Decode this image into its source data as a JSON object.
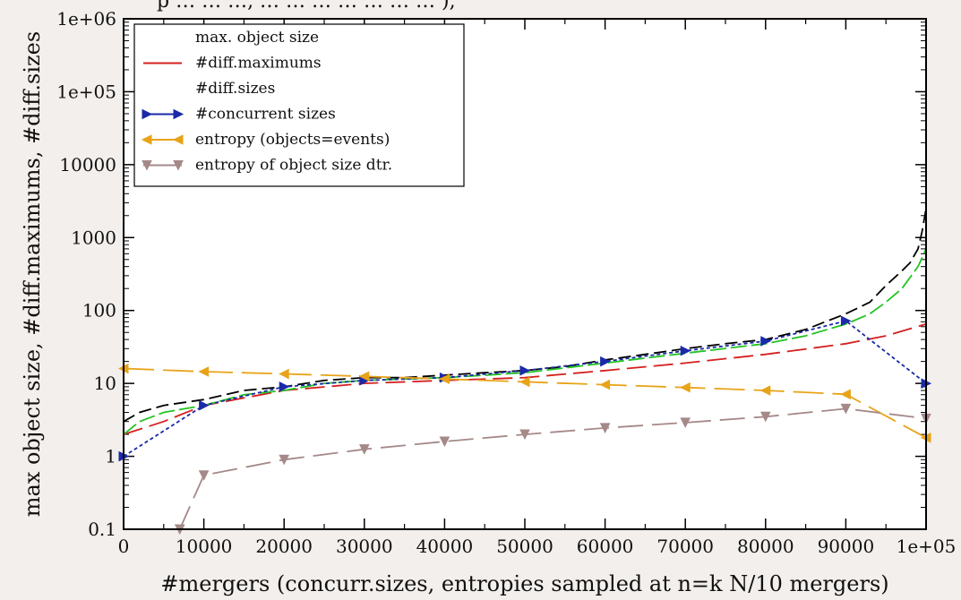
{
  "page": {
    "background": "#f3efec",
    "top_text": "p … … …, … … … … … … … ),"
  },
  "chart_data": {
    "type": "line",
    "xlabel": "#mergers (concurr.sizes, entropies sampled at n=k N/10 mergers)",
    "ylabel": "max object size, #diff.maximums, #diff.sizes",
    "xlim": [
      0,
      100000
    ],
    "ylim": [
      0.1,
      1000000
    ],
    "yscale": "log",
    "x_ticks": [
      {
        "value": 0,
        "label": "0"
      },
      {
        "value": 10000,
        "label": "10000"
      },
      {
        "value": 20000,
        "label": "20000"
      },
      {
        "value": 30000,
        "label": "30000"
      },
      {
        "value": 40000,
        "label": "40000"
      },
      {
        "value": 50000,
        "label": "50000"
      },
      {
        "value": 60000,
        "label": "60000"
      },
      {
        "value": 70000,
        "label": "70000"
      },
      {
        "value": 80000,
        "label": "80000"
      },
      {
        "value": 90000,
        "label": "90000"
      },
      {
        "value": 100000,
        "label": "1e+05"
      }
    ],
    "y_ticks": [
      {
        "value": 0.1,
        "label": "0.1"
      },
      {
        "value": 1,
        "label": "1"
      },
      {
        "value": 10,
        "label": "10"
      },
      {
        "value": 100,
        "label": "100"
      },
      {
        "value": 1000,
        "label": "1000"
      },
      {
        "value": 10000,
        "label": "10000"
      },
      {
        "value": 100000,
        "label": "1e+05"
      },
      {
        "value": 1000000,
        "label": "1e+06"
      }
    ],
    "legend_position": "top-left",
    "series": [
      {
        "name": "max. object size",
        "color": "#000000",
        "style": "dashed",
        "marker": "none",
        "x": [
          0,
          2000,
          5000,
          10000,
          15000,
          20000,
          25000,
          30000,
          35000,
          40000,
          45000,
          50000,
          55000,
          60000,
          65000,
          70000,
          75000,
          80000,
          85000,
          90000,
          93000,
          95000,
          97000,
          98000,
          99000,
          99500,
          100000
        ],
        "y": [
          3,
          4,
          5,
          6,
          8,
          9,
          11,
          12,
          12,
          13,
          14,
          15,
          17,
          21,
          25,
          30,
          35,
          40,
          55,
          90,
          130,
          220,
          350,
          450,
          700,
          1200,
          2500
        ]
      },
      {
        "name": "#diff.maximums",
        "color": "#d42020",
        "style": "dashed",
        "marker": "none",
        "x": [
          0,
          5000,
          10000,
          20000,
          30000,
          40000,
          50000,
          60000,
          70000,
          80000,
          90000,
          95000,
          100000
        ],
        "y": [
          2,
          3,
          5,
          8,
          10,
          11,
          12,
          15,
          19,
          25,
          35,
          45,
          65
        ]
      },
      {
        "name": "#diff.sizes",
        "color": "#22c422",
        "style": "dashed",
        "marker": "none",
        "x": [
          0,
          2000,
          5000,
          10000,
          15000,
          20000,
          25000,
          30000,
          40000,
          50000,
          60000,
          70000,
          80000,
          85000,
          90000,
          93000,
          95000,
          97000,
          99000,
          100000
        ],
        "y": [
          2,
          3,
          4,
          5,
          7,
          8,
          10,
          11,
          12,
          14,
          19,
          26,
          35,
          45,
          65,
          90,
          130,
          200,
          400,
          700
        ]
      },
      {
        "name": "#concurrent sizes",
        "color": "#1a2aa8",
        "style": "dashed",
        "marker": "triangle-right",
        "x": [
          0,
          10000,
          20000,
          30000,
          40000,
          50000,
          60000,
          70000,
          80000,
          90000,
          100000
        ],
        "y": [
          1,
          5,
          9,
          11,
          12,
          15,
          20,
          28,
          38,
          72,
          10
        ]
      },
      {
        "name": "entropy (objects=events)",
        "color": "#e8a318",
        "style": "dashed",
        "marker": "triangle-left",
        "x": [
          0,
          10000,
          20000,
          30000,
          40000,
          50000,
          60000,
          70000,
          80000,
          90000,
          100000
        ],
        "y": [
          16,
          14.5,
          13.5,
          12.5,
          11.5,
          10.5,
          9.6,
          8.8,
          8,
          7.1,
          1.8
        ]
      },
      {
        "name": "entropy of  object size dtr.",
        "color": "#a58888",
        "style": "dashed",
        "marker": "triangle-down",
        "x": [
          7000,
          10000,
          20000,
          30000,
          40000,
          50000,
          60000,
          70000,
          80000,
          90000,
          100000
        ],
        "y": [
          0.1,
          0.55,
          0.9,
          1.25,
          1.6,
          2,
          2.45,
          2.9,
          3.5,
          4.5,
          3.3
        ]
      }
    ]
  }
}
